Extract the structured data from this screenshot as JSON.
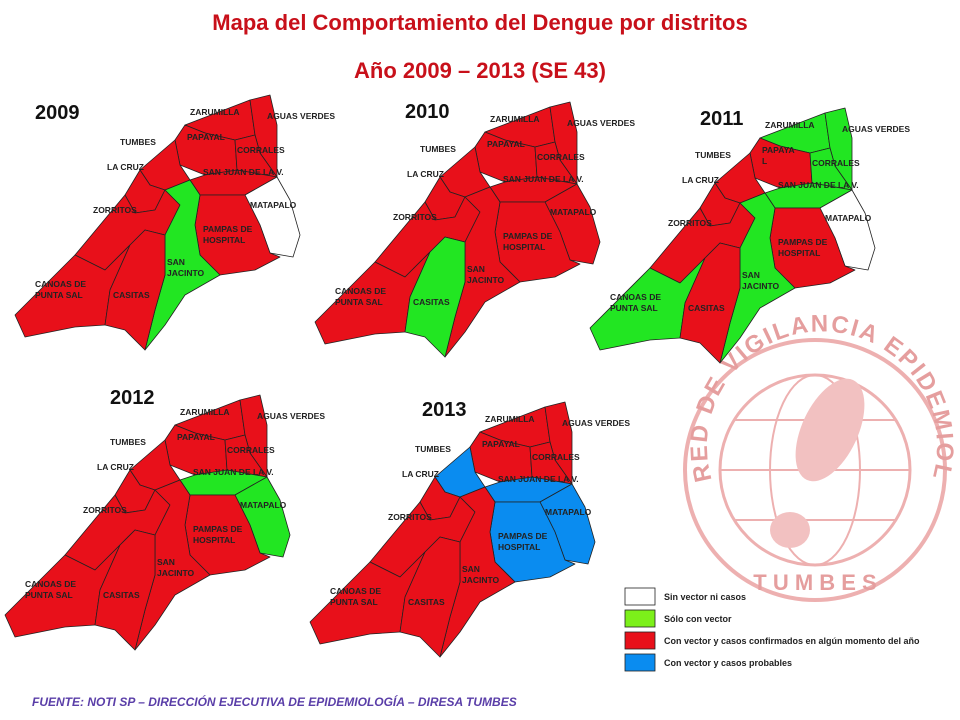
{
  "header": {
    "title": "Mapa del Comportamiento del Dengue por distritos",
    "subtitle": "Año 2009 – 2013 (SE 43)"
  },
  "colors": {
    "red": "#e8101a",
    "green": "#22e622",
    "white": "#ffffff",
    "blue": "#0a8cf0"
  },
  "maps": [
    {
      "year": "2009",
      "districts": [
        {
          "label": [
            "ZARUMILLA"
          ],
          "color": "#e8101a"
        },
        {
          "label": [
            "AGUAS VERDES"
          ],
          "color": "#e8101a"
        },
        {
          "label": [
            "TUMBES"
          ],
          "color": "#e8101a"
        },
        {
          "label": [
            "PAPAYAL"
          ],
          "color": "#e8101a"
        },
        {
          "label": [
            "CORRALES"
          ],
          "color": "#e8101a"
        },
        {
          "label": [
            "LA CRUZ"
          ],
          "color": "#e8101a"
        },
        {
          "label": [
            "SAN JUAN DE LA V."
          ],
          "color": "#e8101a"
        },
        {
          "label": [
            "MATAPALO"
          ],
          "color": "#ffffff"
        },
        {
          "label": [
            "ZORRITOS"
          ],
          "color": "#e8101a"
        },
        {
          "label": [
            "PAMPAS DE",
            "HOSPITAL"
          ],
          "color": "#e8101a"
        },
        {
          "label": [
            "SAN",
            "JACINTO"
          ],
          "color": "#22e622"
        },
        {
          "label": [
            "CANOAS DE",
            "PUNTA SAL"
          ],
          "color": "#e8101a"
        },
        {
          "label": [
            "CASITAS"
          ],
          "color": "#e8101a"
        }
      ]
    },
    {
      "year": "2010",
      "districts": [
        {
          "label": [
            "ZARUMILLA"
          ],
          "color": "#e8101a"
        },
        {
          "label": [
            "AGUAS VERDES"
          ],
          "color": "#e8101a"
        },
        {
          "label": [
            "TUMBES"
          ],
          "color": "#e8101a"
        },
        {
          "label": [
            "PAPAYAL"
          ],
          "color": "#e8101a"
        },
        {
          "label": [
            "CORRALES"
          ],
          "color": "#e8101a"
        },
        {
          "label": [
            "LA CRUZ"
          ],
          "color": "#e8101a"
        },
        {
          "label": [
            "SAN JUAN DE LA V."
          ],
          "color": "#e8101a"
        },
        {
          "label": [
            "MATAPALO"
          ],
          "color": "#e8101a"
        },
        {
          "label": [
            "ZORRITOS"
          ],
          "color": "#e8101a"
        },
        {
          "label": [
            "PAMPAS DE",
            "HOSPITAL"
          ],
          "color": "#e8101a"
        },
        {
          "label": [
            "SAN",
            "JACINTO"
          ],
          "color": "#e8101a"
        },
        {
          "label": [
            "CANOAS DE",
            "PUNTA SAL"
          ],
          "color": "#e8101a"
        },
        {
          "label": [
            "CASITAS"
          ],
          "color": "#22e622"
        }
      ]
    },
    {
      "year": "2011",
      "districts": [
        {
          "label": [
            "ZARUMILLA"
          ],
          "color": "#22e622"
        },
        {
          "label": [
            "AGUAS VERDES"
          ],
          "color": "#22e622"
        },
        {
          "label": [
            "TUMBES"
          ],
          "color": "#e8101a"
        },
        {
          "label": [
            "PAPAYA",
            "L"
          ],
          "color": "#22e622"
        },
        {
          "label": [
            "CORRALES"
          ],
          "color": "#e8101a"
        },
        {
          "label": [
            "LA CRUZ"
          ],
          "color": "#e8101a"
        },
        {
          "label": [
            "SAN JUAN DE LA V."
          ],
          "color": "#22e622"
        },
        {
          "label": [
            "MATAPALO"
          ],
          "color": "#ffffff"
        },
        {
          "label": [
            "ZORRITOS"
          ],
          "color": "#e8101a"
        },
        {
          "label": [
            "PAMPAS DE",
            "HOSPITAL"
          ],
          "color": "#e8101a"
        },
        {
          "label": [
            "SAN",
            "JACINTO"
          ],
          "color": "#22e622"
        },
        {
          "label": [
            "CANOAS DE",
            "PUNTA SAL"
          ],
          "color": "#22e622"
        },
        {
          "label": [
            "CASITAS"
          ],
          "color": "#e8101a"
        }
      ]
    },
    {
      "year": "2012",
      "districts": [
        {
          "label": [
            "ZARUMILLA"
          ],
          "color": "#e8101a"
        },
        {
          "label": [
            "AGUAS VERDES"
          ],
          "color": "#e8101a"
        },
        {
          "label": [
            "TUMBES"
          ],
          "color": "#e8101a"
        },
        {
          "label": [
            "PAPAYAL"
          ],
          "color": "#e8101a"
        },
        {
          "label": [
            "CORRALES"
          ],
          "color": "#e8101a"
        },
        {
          "label": [
            "LA CRUZ"
          ],
          "color": "#e8101a"
        },
        {
          "label": [
            "SAN JUAN DE LA V."
          ],
          "color": "#22e622"
        },
        {
          "label": [
            "MATAPALO"
          ],
          "color": "#22e622"
        },
        {
          "label": [
            "ZORRITOS"
          ],
          "color": "#e8101a"
        },
        {
          "label": [
            "PAMPAS DE",
            "HOSPITAL"
          ],
          "color": "#e8101a"
        },
        {
          "label": [
            "SAN",
            "JACINTO"
          ],
          "color": "#e8101a"
        },
        {
          "label": [
            "CANOAS DE",
            "PUNTA SAL"
          ],
          "color": "#e8101a"
        },
        {
          "label": [
            "CASITAS"
          ],
          "color": "#e8101a"
        }
      ]
    },
    {
      "year": "2013",
      "districts": [
        {
          "label": [
            "ZARUMILLA"
          ],
          "color": "#e8101a"
        },
        {
          "label": [
            "AGUAS VERDES"
          ],
          "color": "#e8101a"
        },
        {
          "label": [
            "TUMBES"
          ],
          "color": "#e8101a"
        },
        {
          "label": [
            "PAPAYAL"
          ],
          "color": "#e8101a"
        },
        {
          "label": [
            "CORRALES"
          ],
          "color": "#0a8cf0"
        },
        {
          "label": [
            "LA CRUZ"
          ],
          "color": "#e8101a"
        },
        {
          "label": [
            "SAN JUAN DE LA V."
          ],
          "color": "#0a8cf0"
        },
        {
          "label": [
            "MATAPALO"
          ],
          "color": "#0a8cf0"
        },
        {
          "label": [
            "ZORRITOS"
          ],
          "color": "#e8101a"
        },
        {
          "label": [
            "PAMPAS DE",
            "HOSPITAL"
          ],
          "color": "#0a8cf0"
        },
        {
          "label": [
            "SAN",
            "JACINTO"
          ],
          "color": "#e8101a"
        },
        {
          "label": [
            "CANOAS DE",
            "PUNTA SAL"
          ],
          "color": "#e8101a"
        },
        {
          "label": [
            "CASITAS"
          ],
          "color": "#e8101a"
        }
      ]
    }
  ],
  "legend": [
    {
      "label": "Sin vector ni casos",
      "color": "#ffffff"
    },
    {
      "label": "Sólo con vector",
      "color": "#7cf01a"
    },
    {
      "label": "Con vector y casos confirmados en algún momento del año",
      "color": "#e8101a"
    },
    {
      "label": "Con vector y casos probables",
      "color": "#0a8cf0"
    }
  ],
  "logo": {
    "ring": "RED DE VIGILANCIA EPIDEMIOLÓGICA",
    "bottom": "T U M B E S"
  },
  "source": "FUENTE: NOTI SP – DIRECCIÓN EJECUTIVA DE EPIDEMIOLOGÍA – DIRESA TUMBES"
}
